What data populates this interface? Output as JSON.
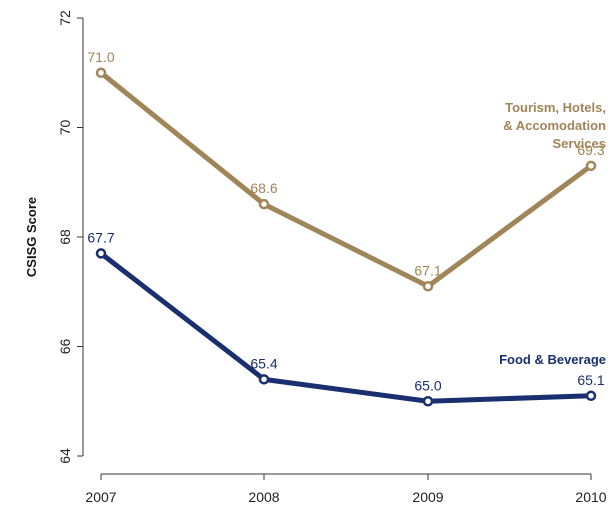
{
  "chart_data": {
    "type": "line",
    "title": "",
    "xlabel": "",
    "ylabel": "CSISG Score",
    "x": [
      "2007",
      "2008",
      "2009",
      "2010"
    ],
    "ylim": [
      64,
      72
    ],
    "yticks": [
      "64",
      "66",
      "68",
      "70",
      "72"
    ],
    "grid": false,
    "series": [
      {
        "name_lines": [
          "Tourism, Hotels,",
          "& Accomodation",
          "Services"
        ],
        "values": [
          71.0,
          68.6,
          67.1,
          69.3
        ],
        "labels": [
          "71.0",
          "68.6",
          "67.1",
          "69.3"
        ],
        "color": "#a08558"
      },
      {
        "name_lines": [
          "Food & Beverage"
        ],
        "values": [
          67.7,
          65.4,
          65.0,
          65.1
        ],
        "labels": [
          "67.7",
          "65.4",
          "65.0",
          "65.1"
        ],
        "color": "#1a2f70"
      }
    ]
  }
}
